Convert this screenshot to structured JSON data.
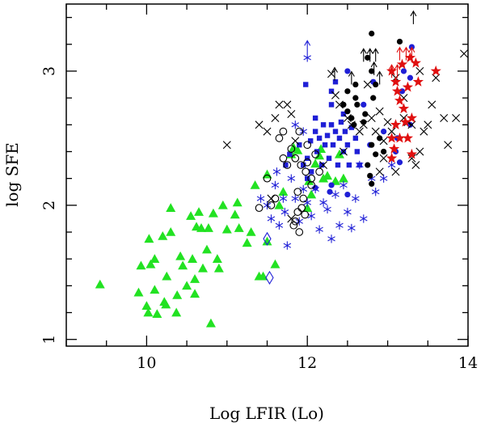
{
  "chart_data": {
    "type": "scatter",
    "title": "",
    "xlabel": "Log LFIR (Lo)",
    "ylabel": "log SFE",
    "xlim": [
      9,
      14
    ],
    "ylim": [
      0.95,
      3.5
    ],
    "xticks": [
      10,
      12,
      14
    ],
    "xtick_labels": [
      "10",
      "12",
      "14"
    ],
    "yticks": [
      1,
      2,
      3
    ],
    "ytick_labels": [
      "1",
      "2",
      "3"
    ],
    "colors": {
      "green": "#22e222",
      "blue": "#1f1fd6",
      "black": "#000000",
      "red": "#e01010"
    },
    "series": [
      {
        "name": "green triangles",
        "marker": "triangle",
        "color": "#22e222",
        "points": [
          [
            9.42,
            1.41
          ],
          [
            9.9,
            1.35
          ],
          [
            9.93,
            1.55
          ],
          [
            10.0,
            1.25
          ],
          [
            10.05,
            1.56
          ],
          [
            10.03,
            1.75
          ],
          [
            10.02,
            1.2
          ],
          [
            10.1,
            1.6
          ],
          [
            10.1,
            1.37
          ],
          [
            10.13,
            1.19
          ],
          [
            10.2,
            1.77
          ],
          [
            10.24,
            1.26
          ],
          [
            10.25,
            1.47
          ],
          [
            10.22,
            1.28
          ],
          [
            10.3,
            1.98
          ],
          [
            10.3,
            1.8
          ],
          [
            10.37,
            1.2
          ],
          [
            10.38,
            1.33
          ],
          [
            10.42,
            1.62
          ],
          [
            10.45,
            1.55
          ],
          [
            10.5,
            1.4
          ],
          [
            10.55,
            1.92
          ],
          [
            10.57,
            1.6
          ],
          [
            10.6,
            1.34
          ],
          [
            10.6,
            1.45
          ],
          [
            10.62,
            1.84
          ],
          [
            10.65,
            1.95
          ],
          [
            10.68,
            1.83
          ],
          [
            10.7,
            1.53
          ],
          [
            10.75,
            1.67
          ],
          [
            10.77,
            1.83
          ],
          [
            10.8,
            1.12
          ],
          [
            10.83,
            1.94
          ],
          [
            10.88,
            1.6
          ],
          [
            10.9,
            1.53
          ],
          [
            10.95,
            2.0
          ],
          [
            11.0,
            1.82
          ],
          [
            11.1,
            1.93
          ],
          [
            11.13,
            2.02
          ],
          [
            11.15,
            1.83
          ],
          [
            11.25,
            1.72
          ],
          [
            11.3,
            1.8
          ],
          [
            11.35,
            2.15
          ],
          [
            11.4,
            1.47
          ],
          [
            11.45,
            1.47
          ],
          [
            11.5,
            1.73
          ],
          [
            11.5,
            2.23
          ],
          [
            11.6,
            1.56
          ],
          [
            11.65,
            2.0
          ],
          [
            11.7,
            2.1
          ],
          [
            11.8,
            2.38
          ],
          [
            11.83,
            2.43
          ],
          [
            11.88,
            2.41
          ],
          [
            12.0,
            1.98
          ],
          [
            12.02,
            2.18
          ],
          [
            12.05,
            2.08
          ],
          [
            12.1,
            2.31
          ],
          [
            12.15,
            2.37
          ],
          [
            12.17,
            2.42
          ],
          [
            12.2,
            2.2
          ],
          [
            12.25,
            2.22
          ],
          [
            12.35,
            2.18
          ],
          [
            12.4,
            2.38
          ],
          [
            12.45,
            2.2
          ]
        ]
      },
      {
        "name": "blue squares",
        "marker": "square",
        "color": "#1f1fd6",
        "points": [
          [
            11.73,
            2.3
          ],
          [
            11.78,
            2.38
          ],
          [
            11.9,
            2.45
          ],
          [
            11.95,
            2.3
          ],
          [
            12.0,
            2.2
          ],
          [
            12.0,
            2.35
          ],
          [
            12.04,
            2.48
          ],
          [
            12.05,
            2.25
          ],
          [
            12.1,
            2.55
          ],
          [
            12.12,
            2.4
          ],
          [
            12.15,
            2.5
          ],
          [
            12.18,
            2.3
          ],
          [
            12.2,
            2.6
          ],
          [
            12.22,
            2.45
          ],
          [
            12.25,
            2.52
          ],
          [
            12.27,
            2.35
          ],
          [
            12.3,
            2.6
          ],
          [
            12.32,
            2.45
          ],
          [
            12.35,
            2.55
          ],
          [
            12.38,
            2.3
          ],
          [
            12.4,
            2.5
          ],
          [
            12.42,
            2.62
          ],
          [
            12.45,
            2.4
          ],
          [
            12.47,
            2.55
          ],
          [
            12.5,
            2.45
          ],
          [
            12.52,
            2.3
          ],
          [
            12.55,
            2.58
          ],
          [
            12.6,
            2.5
          ],
          [
            12.62,
            2.4
          ],
          [
            12.65,
            2.3
          ],
          [
            12.3,
            2.75
          ],
          [
            12.3,
            2.85
          ],
          [
            11.98,
            2.9
          ],
          [
            12.1,
            2.65
          ],
          [
            12.45,
            2.68
          ],
          [
            12.35,
            2.92
          ]
        ]
      },
      {
        "name": "blue dots",
        "marker": "dot",
        "color": "#1f1fd6",
        "points": [
          [
            12.5,
            3.0
          ],
          [
            12.7,
            2.75
          ],
          [
            12.82,
            2.92
          ],
          [
            12.95,
            2.55
          ],
          [
            13.1,
            2.4
          ],
          [
            13.12,
            2.5
          ],
          [
            13.18,
            2.85
          ],
          [
            13.2,
            3.0
          ],
          [
            13.28,
            2.95
          ],
          [
            13.3,
            3.18
          ],
          [
            13.28,
            2.6
          ],
          [
            13.15,
            2.32
          ],
          [
            12.5,
            2.08
          ],
          [
            12.3,
            2.15
          ],
          [
            12.28,
            2.1
          ],
          [
            12.1,
            2.13
          ],
          [
            12.78,
            2.45
          ]
        ]
      },
      {
        "name": "blue asterisks",
        "marker": "asterisk",
        "color": "#1f1fd6",
        "points": [
          [
            11.42,
            2.05
          ],
          [
            11.5,
            2.0
          ],
          [
            11.55,
            1.9
          ],
          [
            11.6,
            2.15
          ],
          [
            11.62,
            2.25
          ],
          [
            11.65,
            1.85
          ],
          [
            11.7,
            2.05
          ],
          [
            11.72,
            1.95
          ],
          [
            11.75,
            1.7
          ],
          [
            11.8,
            2.2
          ],
          [
            11.85,
            2.05
          ],
          [
            11.9,
            1.88
          ],
          [
            11.95,
            2.12
          ],
          [
            12.0,
            2.02
          ],
          [
            12.05,
            1.92
          ],
          [
            12.1,
            2.12
          ],
          [
            12.15,
            1.82
          ],
          [
            12.2,
            2.02
          ],
          [
            12.25,
            1.97
          ],
          [
            12.3,
            1.75
          ],
          [
            12.35,
            2.08
          ],
          [
            12.4,
            1.85
          ],
          [
            12.45,
            2.15
          ],
          [
            12.5,
            1.95
          ],
          [
            12.6,
            2.05
          ],
          [
            12.65,
            2.3
          ],
          [
            12.8,
            2.2
          ],
          [
            12.85,
            2.1
          ],
          [
            12.95,
            2.2
          ],
          [
            13.05,
            2.3
          ],
          [
            12.7,
            1.9
          ],
          [
            12.55,
            1.83
          ],
          [
            11.95,
            2.55
          ],
          [
            11.85,
            2.6
          ],
          [
            12.0,
            3.1
          ]
        ]
      },
      {
        "name": "blue diamonds",
        "marker": "diamond",
        "color": "#1f1fd6",
        "points": [
          [
            11.5,
            1.75
          ],
          [
            11.53,
            1.46
          ]
        ]
      },
      {
        "name": "black open circles",
        "marker": "circle",
        "color": "#000000",
        "points": [
          [
            11.4,
            1.98
          ],
          [
            11.5,
            2.2
          ],
          [
            11.6,
            2.05
          ],
          [
            11.65,
            2.5
          ],
          [
            11.7,
            2.35
          ],
          [
            11.75,
            2.3
          ],
          [
            11.8,
            2.42
          ],
          [
            11.85,
            1.88
          ],
          [
            11.88,
            2.1
          ],
          [
            11.9,
            2.55
          ],
          [
            11.92,
            2.3
          ],
          [
            11.95,
            2.05
          ],
          [
            12.0,
            2.45
          ],
          [
            12.05,
            2.2
          ],
          [
            12.1,
            2.38
          ],
          [
            11.88,
            1.95
          ],
          [
            11.93,
            1.98
          ],
          [
            11.98,
            2.25
          ],
          [
            11.83,
            1.85
          ],
          [
            11.9,
            1.8
          ],
          [
            11.97,
            1.93
          ],
          [
            12.05,
            2.15
          ],
          [
            12.15,
            2.25
          ],
          [
            11.7,
            2.55
          ],
          [
            11.55,
            2.0
          ],
          [
            11.85,
            2.35
          ],
          [
            12.0,
            2.32
          ]
        ]
      },
      {
        "name": "black filled dots",
        "marker": "dot",
        "color": "#000000",
        "points": [
          [
            12.8,
            3.28
          ],
          [
            13.15,
            3.22
          ],
          [
            12.75,
            3.1
          ],
          [
            12.8,
            3.0
          ],
          [
            12.5,
            2.85
          ],
          [
            12.6,
            2.8
          ],
          [
            12.62,
            2.75
          ],
          [
            12.55,
            2.65
          ],
          [
            12.58,
            2.6
          ],
          [
            12.7,
            2.62
          ],
          [
            12.8,
            2.45
          ],
          [
            12.85,
            2.38
          ],
          [
            12.9,
            2.5
          ],
          [
            12.95,
            2.4
          ],
          [
            12.75,
            2.3
          ],
          [
            12.78,
            2.22
          ],
          [
            12.8,
            2.16
          ],
          [
            12.5,
            2.7
          ],
          [
            12.45,
            2.75
          ],
          [
            12.6,
            2.9
          ],
          [
            12.72,
            2.68
          ],
          [
            12.85,
            2.9
          ],
          [
            12.82,
            2.8
          ]
        ]
      },
      {
        "name": "black crosses",
        "marker": "cross",
        "color": "#000000",
        "points": [
          [
            11.0,
            2.45
          ],
          [
            11.4,
            2.6
          ],
          [
            11.5,
            2.55
          ],
          [
            11.6,
            2.65
          ],
          [
            11.65,
            2.75
          ],
          [
            11.75,
            2.75
          ],
          [
            11.8,
            2.68
          ],
          [
            11.85,
            2.48
          ],
          [
            12.3,
            2.98
          ],
          [
            12.35,
            2.82
          ],
          [
            12.4,
            2.75
          ],
          [
            12.5,
            2.65
          ],
          [
            12.55,
            2.6
          ],
          [
            12.65,
            2.55
          ],
          [
            12.7,
            2.6
          ],
          [
            12.8,
            2.65
          ],
          [
            12.85,
            2.55
          ],
          [
            12.9,
            2.7
          ],
          [
            12.95,
            2.35
          ],
          [
            13.0,
            2.62
          ],
          [
            13.05,
            2.55
          ],
          [
            13.1,
            2.25
          ],
          [
            13.2,
            2.65
          ],
          [
            13.25,
            2.62
          ],
          [
            13.3,
            2.6
          ],
          [
            13.3,
            2.35
          ],
          [
            13.35,
            2.3
          ],
          [
            13.4,
            2.4
          ],
          [
            13.45,
            2.55
          ],
          [
            13.5,
            2.6
          ],
          [
            13.55,
            2.75
          ],
          [
            13.6,
            2.95
          ],
          [
            13.7,
            2.65
          ],
          [
            13.75,
            2.45
          ],
          [
            13.85,
            2.65
          ],
          [
            13.95,
            3.13
          ],
          [
            13.4,
            3.0
          ],
          [
            13.2,
            2.8
          ],
          [
            13.1,
            2.95
          ],
          [
            12.75,
            2.9
          ],
          [
            12.45,
            2.4
          ],
          [
            12.2,
            2.3
          ],
          [
            11.8,
            1.9
          ],
          [
            12.9,
            2.25
          ],
          [
            12.95,
            2.48
          ],
          [
            11.55,
            2.05
          ]
        ]
      },
      {
        "name": "red stars",
        "marker": "star",
        "color": "#e01010",
        "points": [
          [
            13.05,
            3.0
          ],
          [
            13.1,
            2.92
          ],
          [
            13.12,
            2.85
          ],
          [
            13.15,
            2.78
          ],
          [
            13.2,
            2.72
          ],
          [
            13.22,
            2.62
          ],
          [
            13.1,
            2.6
          ],
          [
            13.05,
            2.5
          ],
          [
            13.08,
            2.42
          ],
          [
            13.15,
            2.5
          ],
          [
            13.25,
            2.88
          ],
          [
            13.28,
            3.1
          ],
          [
            13.35,
            3.06
          ],
          [
            13.38,
            2.92
          ],
          [
            13.3,
            2.65
          ],
          [
            13.6,
            3.0
          ],
          [
            13.18,
            3.05
          ],
          [
            13.25,
            2.5
          ],
          [
            13.05,
            2.35
          ],
          [
            13.3,
            2.38
          ]
        ]
      },
      {
        "name": "upper-limit arrows",
        "marker": "arrow",
        "color": "#000000",
        "points": [
          [
            12.0,
            3.13,
            "blue"
          ],
          [
            12.34,
            2.93,
            "black"
          ],
          [
            12.7,
            3.07,
            "black"
          ],
          [
            12.78,
            3.07,
            "black"
          ],
          [
            12.85,
            3.07,
            "black"
          ],
          [
            12.83,
            2.97,
            "black"
          ],
          [
            12.9,
            2.9,
            "black"
          ],
          [
            12.55,
            2.9,
            "black"
          ],
          [
            13.32,
            3.35,
            "black"
          ],
          [
            13.15,
            3.08,
            "red"
          ],
          [
            13.23,
            3.08,
            "red"
          ],
          [
            13.3,
            3.08,
            "red"
          ],
          [
            13.05,
            2.95,
            "red"
          ],
          [
            13.12,
            2.95,
            "red"
          ]
        ]
      }
    ]
  }
}
